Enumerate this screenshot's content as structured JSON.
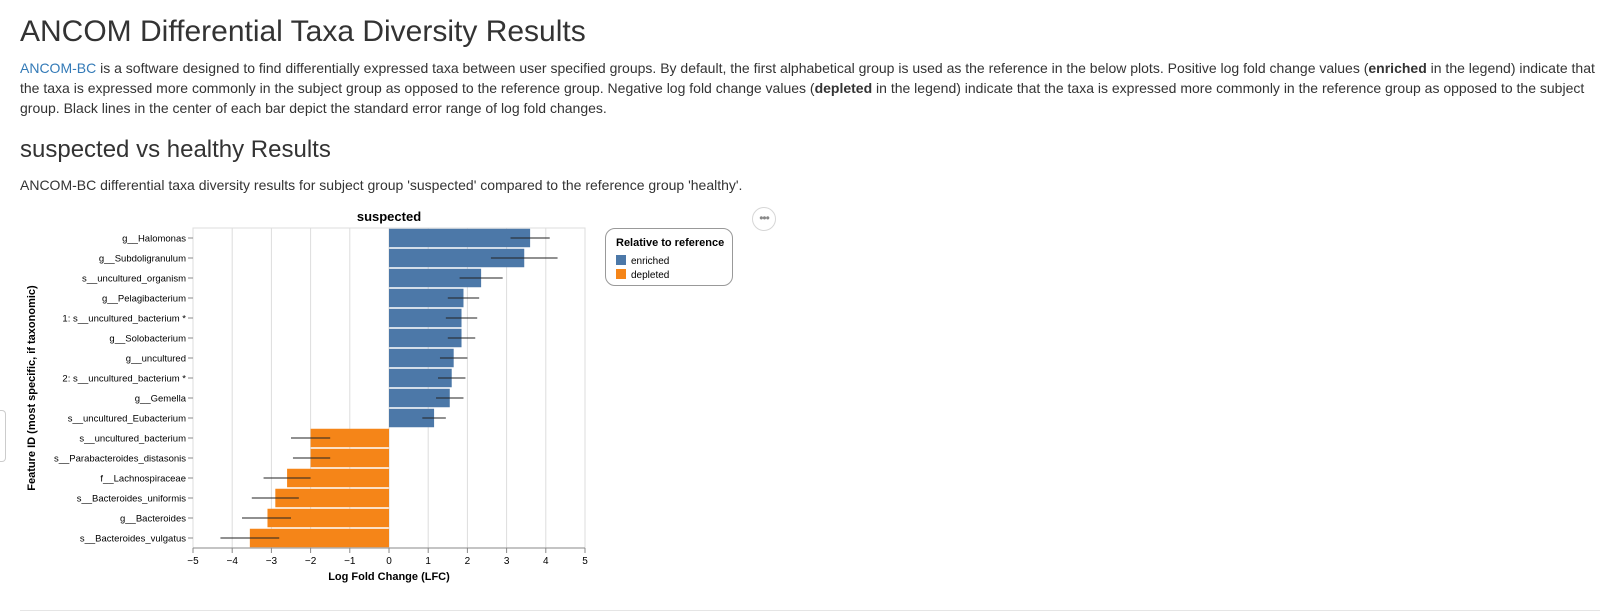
{
  "page": {
    "title": "ANCOM Differential Taxa Diversity Results",
    "intro_link": "ANCOM-BC",
    "intro_part1": " is a software designed to find differentially expressed taxa between user specified groups. By default, the first alphabetical group is used as the reference in the below plots. Positive log fold change values (",
    "intro_bold1": "enriched",
    "intro_part2": " in the legend) indicate that the taxa is expressed more commonly in the subject group as opposed to the reference group. Negative log fold change values (",
    "intro_bold2": "depleted",
    "intro_part3": " in the legend) indicate that the taxa is expressed more commonly in the reference group as opposed to the subject group. Black lines in the center of each bar depict the standard error range of log fold changes.",
    "section_title": "suspected vs healthy Results",
    "section_desc": "ANCOM-BC differential taxa diversity results for subject group 'suspected' compared to the reference group 'healthy'.",
    "actions_label": "•••"
  },
  "legend": {
    "title": "Relative to reference",
    "items": [
      {
        "label": "enriched",
        "color": "#4c78a8"
      },
      {
        "label": "depleted",
        "color": "#f58518"
      }
    ]
  },
  "chart_data": {
    "type": "bar",
    "orientation": "horizontal",
    "title": "suspected",
    "xlabel": "Log Fold Change (LFC)",
    "ylabel": "Feature ID (most specific, if taxonomic)",
    "xlim": [
      -5,
      5
    ],
    "xticks": [
      -5,
      -4,
      -3,
      -2,
      -1,
      0,
      1,
      2,
      3,
      4,
      5
    ],
    "grid": true,
    "legend_position": "right",
    "categories": [
      "g__Halomonas",
      "g__Subdoligranulum",
      "s__uncultured_organism",
      "g__Pelagibacterium",
      "1: s__uncultured_bacterium *",
      "g__Solobacterium",
      "g__uncultured",
      "2: s__uncultured_bacterium *",
      "g__Gemella",
      "s__uncultured_Eubacterium",
      "s__uncultured_bacterium",
      "s__Parabacteroides_distasonis",
      "f__Lachnospiraceae",
      "s__Bacteroides_uniformis",
      "g__Bacteroides",
      "s__Bacteroides_vulgatus"
    ],
    "values": [
      3.6,
      3.45,
      2.35,
      1.9,
      1.85,
      1.85,
      1.65,
      1.6,
      1.55,
      1.15,
      -2.0,
      -2.0,
      -2.6,
      -2.9,
      -3.1,
      -3.55
    ],
    "error_low": [
      3.1,
      2.6,
      1.8,
      1.5,
      1.45,
      1.5,
      1.3,
      1.25,
      1.2,
      0.85,
      -2.5,
      -2.45,
      -3.2,
      -3.5,
      -3.75,
      -4.3
    ],
    "error_high": [
      4.1,
      4.3,
      2.9,
      2.3,
      2.25,
      2.2,
      2.0,
      1.95,
      1.9,
      1.45,
      -1.5,
      -1.5,
      -2.0,
      -2.3,
      -2.5,
      -2.8
    ],
    "group": [
      "enriched",
      "enriched",
      "enriched",
      "enriched",
      "enriched",
      "enriched",
      "enriched",
      "enriched",
      "enriched",
      "enriched",
      "depleted",
      "depleted",
      "depleted",
      "depleted",
      "depleted",
      "depleted"
    ]
  }
}
